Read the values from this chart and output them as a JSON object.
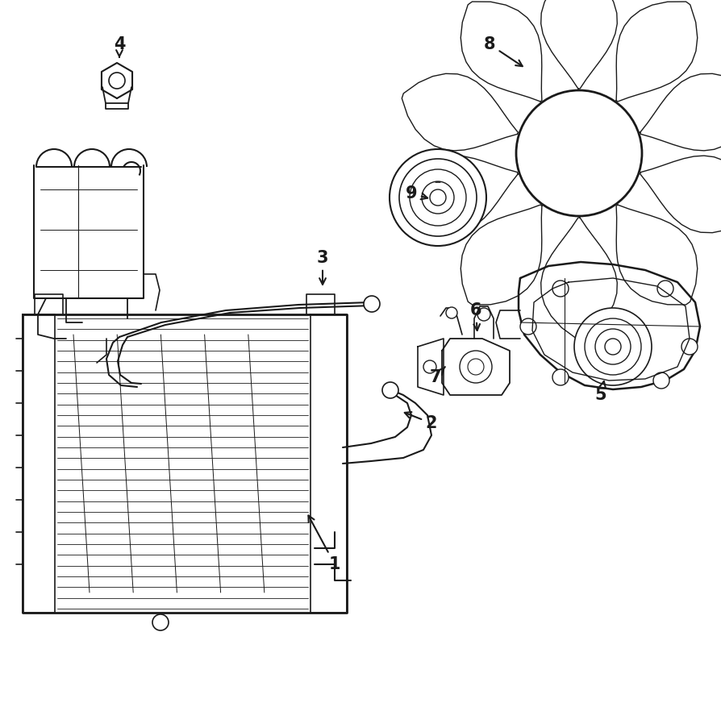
{
  "background_color": "#ffffff",
  "line_color": "#1a1a1a",
  "lw": 1.0,
  "fig_w": 8.94,
  "fig_h": 8.77,
  "dpi": 100
}
